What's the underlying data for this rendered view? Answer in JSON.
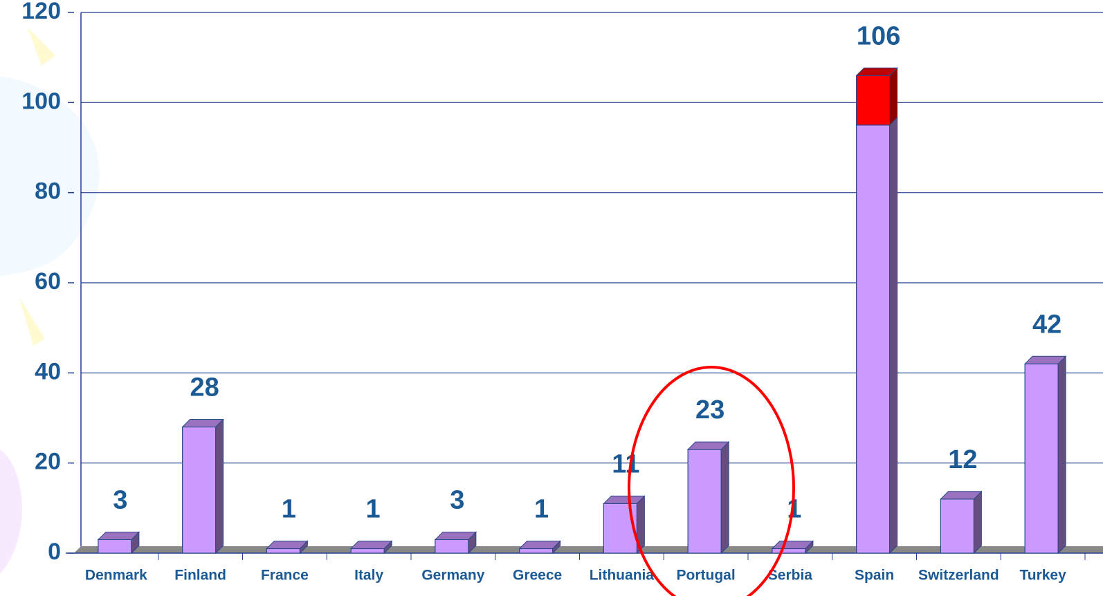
{
  "chart_data": {
    "type": "bar",
    "stacked": true,
    "categories": [
      "Denmark",
      "Finland",
      "France",
      "Italy",
      "Germany",
      "Greece",
      "Lithuania",
      "Portugal",
      "Serbia",
      "Spain",
      "Switzerland",
      "Turkey"
    ],
    "series": [
      {
        "color": "#cc99ff",
        "values": [
          3,
          28,
          1,
          1,
          3,
          1,
          11,
          23,
          1,
          95,
          12,
          42
        ]
      },
      {
        "color": "#ff0000",
        "values": [
          null,
          null,
          null,
          null,
          null,
          null,
          null,
          null,
          null,
          11,
          null,
          null
        ]
      }
    ],
    "total_labels": [
      3,
      28,
      1,
      1,
      3,
      1,
      11,
      23,
      1,
      106,
      12,
      42
    ],
    "ylim": [
      0,
      120
    ],
    "yticks": [
      0,
      20,
      40,
      60,
      80,
      100,
      120
    ],
    "grid": true
  }
}
